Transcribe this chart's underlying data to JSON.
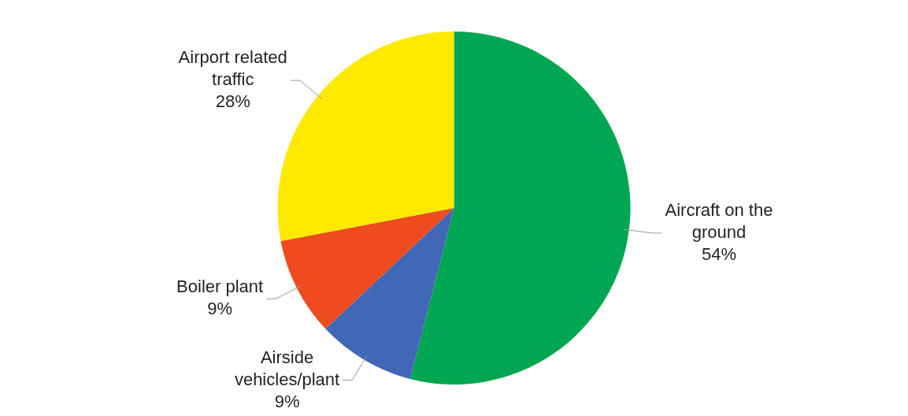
{
  "chart_data": {
    "type": "pie",
    "categories": [
      "Aircraft on the ground",
      "Airside vehicles/plant",
      "Boiler plant",
      "Airport related traffic"
    ],
    "values": [
      54,
      9,
      9,
      28
    ],
    "colors": [
      "#00a651",
      "#4068b6",
      "#ee4b1e",
      "#ffe900"
    ],
    "value_labels": [
      "54%",
      "9%",
      "9%",
      "28%"
    ],
    "legend": false
  }
}
